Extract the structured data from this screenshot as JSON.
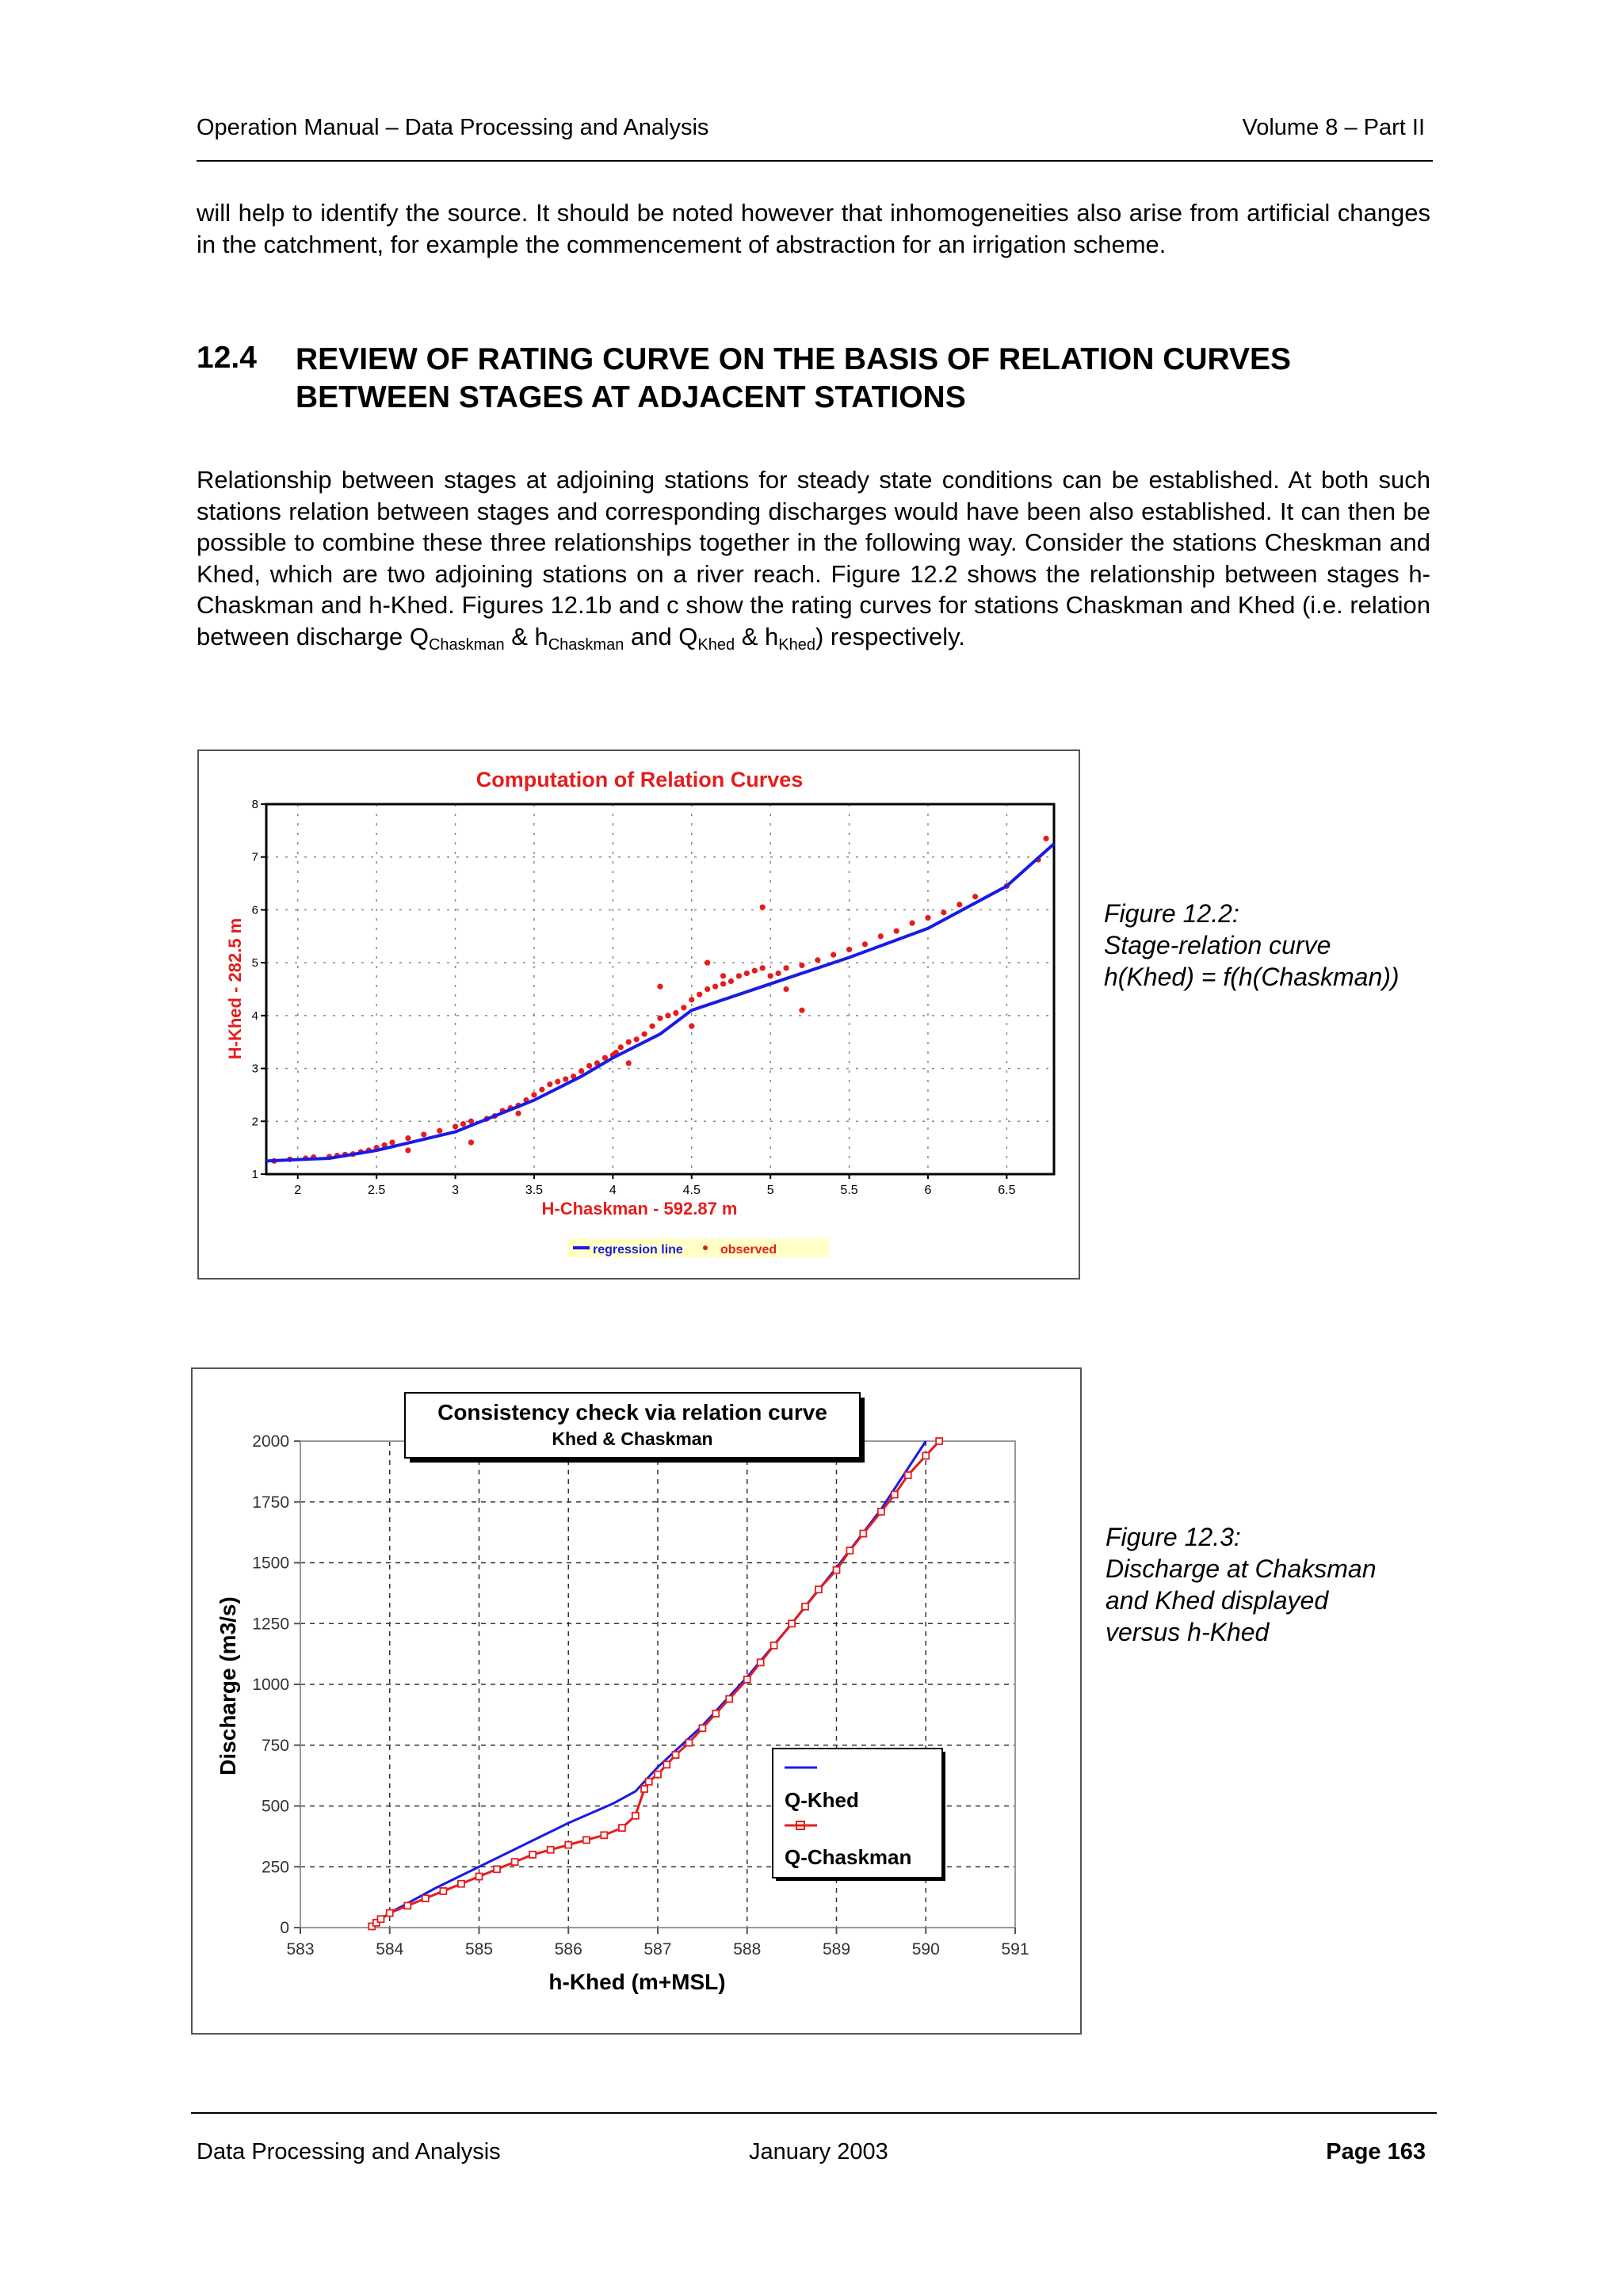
{
  "header": {
    "left": "Operation Manual – Data Processing and Analysis",
    "right": "Volume 8 – Part II"
  },
  "intro_paragraph": "will help to identify the source. It should be noted however that inhomogeneities also arise from artificial changes in the catchment, for example the commencement of abstraction for an irrigation scheme.",
  "section": {
    "number": "12.4",
    "title": "REVIEW OF RATING CURVE ON THE BASIS OF RELATION CURVES BETWEEN STAGES AT ADJACENT STATIONS"
  },
  "paragraph2": {
    "main": "Relationship between stages at adjoining stations for steady state conditions can be established. At both such stations relation between stages and corresponding discharges would have been also established. It can then be possible to combine these three relationships together in the following way. Consider the stations Cheskman and Khed, which are two adjoining stations on a river reach. Figure 12.2 shows the relationship between stages h-Chaskman and h-Khed. Figures 12.1b and c show the rating curves for stations Chaskman and Khed (i.e. relation between discharge Q",
    "sub1": "Chaskman",
    "amp1": " & h",
    "sub2": "Chaskman",
    "and": " and Q",
    "sub3": "Khed",
    "amp2": " & h",
    "sub4": "Khed",
    "tail": ") respectively."
  },
  "figure1": {
    "caption_lines": [
      "Figure 12.2:",
      "Stage-relation curve",
      "h(Khed) = f(h(Chaskman))"
    ]
  },
  "figure2": {
    "caption_lines": [
      "Figure 12.3:",
      "Discharge at Chaksman",
      "and Khed displayed",
      "versus h-Khed"
    ]
  },
  "footer": {
    "left": "Data Processing and Analysis",
    "center": "January 2003",
    "right": "Page 163"
  },
  "colors": {
    "blue": "#1a1ae6",
    "red": "#e61c1c"
  },
  "chart_data": [
    {
      "type": "scatter",
      "title": "Computation of Relation Curves",
      "xlabel": "H-Chaskman - 592.87 m",
      "ylabel": "H-Khed - 282.5 m",
      "xlim": [
        1.8,
        6.8
      ],
      "ylim": [
        1,
        8
      ],
      "xticks": [
        "2",
        "2.5",
        "3",
        "3.5",
        "4",
        "4.5",
        "5",
        "5.5",
        "6",
        "6.5"
      ],
      "xtick_values": [
        2,
        2.5,
        3,
        3.5,
        4,
        4.5,
        5,
        5.5,
        6,
        6.5
      ],
      "yticks": [
        "1",
        "2",
        "3",
        "4",
        "5",
        "6",
        "7",
        "8"
      ],
      "ytick_values": [
        1,
        2,
        3,
        4,
        5,
        6,
        7,
        8
      ],
      "grid": true,
      "legend": "bottom",
      "series": [
        {
          "name": "regression line",
          "kind": "line",
          "color": "#1a1ae6",
          "x": [
            1.8,
            2.2,
            2.5,
            3.0,
            3.5,
            3.8,
            4.0,
            4.3,
            4.5,
            5.0,
            5.5,
            6.0,
            6.5,
            6.8
          ],
          "y": [
            1.25,
            1.3,
            1.45,
            1.8,
            2.4,
            2.85,
            3.2,
            3.65,
            4.1,
            4.6,
            5.1,
            5.65,
            6.45,
            7.25
          ]
        },
        {
          "name": "observed",
          "kind": "scatter",
          "color": "#e61c1c",
          "x": [
            1.85,
            1.95,
            2.05,
            2.1,
            2.2,
            2.25,
            2.3,
            2.35,
            2.4,
            2.45,
            2.5,
            2.55,
            2.6,
            2.7,
            2.8,
            2.9,
            3.0,
            3.05,
            3.1,
            3.2,
            3.25,
            3.3,
            3.35,
            3.4,
            3.45,
            3.5,
            3.55,
            3.6,
            3.65,
            3.7,
            3.75,
            3.8,
            3.85,
            3.9,
            3.95,
            4.0,
            4.02,
            4.05,
            4.1,
            4.15,
            4.2,
            4.25,
            4.3,
            4.35,
            4.4,
            4.45,
            4.5,
            4.55,
            4.6,
            4.65,
            4.7,
            4.75,
            4.8,
            4.85,
            4.9,
            4.95,
            5.0,
            5.05,
            5.1,
            5.2,
            5.3,
            5.4,
            5.5,
            5.6,
            5.7,
            5.8,
            5.9,
            6.0,
            6.1,
            6.2,
            6.3,
            6.5,
            6.7,
            6.75,
            2.7,
            3.1,
            3.4,
            4.1,
            4.5,
            4.7,
            4.95,
            5.1,
            5.2,
            4.3,
            4.6
          ],
          "y": [
            1.25,
            1.28,
            1.3,
            1.32,
            1.33,
            1.35,
            1.37,
            1.38,
            1.42,
            1.45,
            1.5,
            1.55,
            1.6,
            1.68,
            1.75,
            1.82,
            1.9,
            1.95,
            2.0,
            2.05,
            2.1,
            2.2,
            2.25,
            2.3,
            2.4,
            2.5,
            2.6,
            2.7,
            2.75,
            2.8,
            2.85,
            2.95,
            3.05,
            3.1,
            3.2,
            3.25,
            3.3,
            3.4,
            3.5,
            3.55,
            3.65,
            3.8,
            3.95,
            4.0,
            4.05,
            4.15,
            4.3,
            4.4,
            4.5,
            4.55,
            4.6,
            4.65,
            4.75,
            4.8,
            4.85,
            4.9,
            4.75,
            4.8,
            4.9,
            4.95,
            5.05,
            5.15,
            5.25,
            5.35,
            5.5,
            5.6,
            5.75,
            5.85,
            5.95,
            6.1,
            6.25,
            6.45,
            6.95,
            7.35,
            1.45,
            1.6,
            2.15,
            3.1,
            3.8,
            4.75,
            6.05,
            4.5,
            4.1,
            4.55,
            5.0
          ]
        }
      ]
    },
    {
      "type": "line",
      "title": "Consistency check via relation curve",
      "subtitle": "Khed & Chaskman",
      "xlabel": "h-Khed (m+MSL)",
      "ylabel": "Discharge (m3/s)",
      "xlim": [
        583,
        591
      ],
      "ylim": [
        0,
        2000
      ],
      "xticks": [
        "583",
        "584",
        "585",
        "586",
        "587",
        "588",
        "589",
        "590",
        "591"
      ],
      "xtick_values": [
        583,
        584,
        585,
        586,
        587,
        588,
        589,
        590,
        591
      ],
      "yticks": [
        "0",
        "250",
        "500",
        "750",
        "1000",
        "1250",
        "1500",
        "1750",
        "2000"
      ],
      "ytick_values": [
        0,
        250,
        500,
        750,
        1000,
        1250,
        1500,
        1750,
        2000
      ],
      "grid": true,
      "legend": "bottom-right",
      "series": [
        {
          "name": "Q-Khed",
          "color": "#1a1ae6",
          "marker": "none",
          "x": [
            583.8,
            584.0,
            584.5,
            585.0,
            585.5,
            586.0,
            586.5,
            586.75,
            587.0,
            587.5,
            588.0,
            588.5,
            589.0,
            589.5,
            590.0
          ],
          "y": [
            10,
            60,
            160,
            250,
            340,
            430,
            510,
            560,
            660,
            830,
            1030,
            1250,
            1480,
            1720,
            2000
          ]
        },
        {
          "name": "Q-Chaskman",
          "color": "#e61c1c",
          "marker": "square",
          "x": [
            583.8,
            583.85,
            583.9,
            584.0,
            584.2,
            584.4,
            584.6,
            584.8,
            585.0,
            585.2,
            585.4,
            585.6,
            585.8,
            586.0,
            586.2,
            586.4,
            586.6,
            586.75,
            586.85,
            586.9,
            587.0,
            587.1,
            587.2,
            587.35,
            587.5,
            587.65,
            587.8,
            588.0,
            588.15,
            588.3,
            588.5,
            588.65,
            588.8,
            589.0,
            589.15,
            589.3,
            589.5,
            589.65,
            589.8,
            590.0,
            590.15
          ],
          "y": [
            5,
            20,
            35,
            60,
            90,
            120,
            150,
            180,
            210,
            240,
            270,
            300,
            320,
            340,
            360,
            380,
            410,
            460,
            570,
            600,
            630,
            670,
            710,
            760,
            820,
            880,
            940,
            1020,
            1090,
            1160,
            1250,
            1320,
            1390,
            1470,
            1550,
            1620,
            1710,
            1780,
            1860,
            1940,
            2000
          ]
        }
      ]
    }
  ]
}
